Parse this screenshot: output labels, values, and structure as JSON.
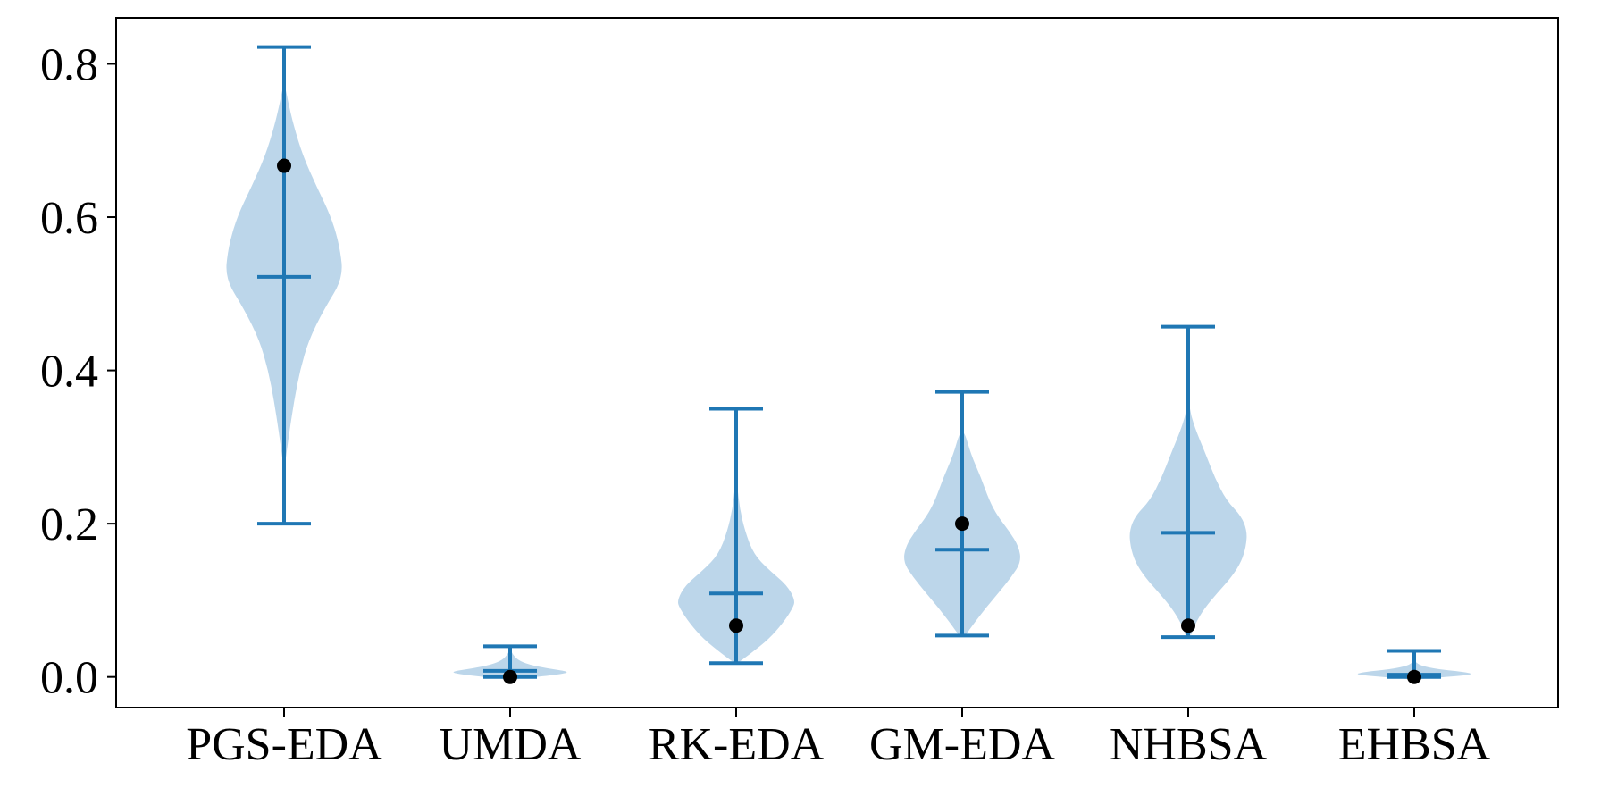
{
  "chart_data": {
    "type": "violin",
    "title": "",
    "xlabel": "",
    "ylabel": "",
    "ylim": [
      -0.04,
      0.86
    ],
    "yticks": [
      0.0,
      0.2,
      0.4,
      0.6,
      0.8
    ],
    "ytick_labels": [
      "0.0",
      "0.2",
      "0.4",
      "0.6",
      "0.8"
    ],
    "grid": false,
    "legend": "none",
    "colors": {
      "violin_fill": "#bcd6ea",
      "whisker": "#1f77b4",
      "point": "#000000",
      "axes": "#000000"
    },
    "categories": [
      "PGS-EDA",
      "UMDA",
      "RK-EDA",
      "GM-EDA",
      "NHBSA",
      "EHBSA"
    ],
    "series": [
      {
        "category": "PGS-EDA",
        "min": 0.2,
        "max": 0.822,
        "mean": 0.522,
        "point": 0.667,
        "density": [
          [
            0.28,
            0.02
          ],
          [
            0.32,
            0.09
          ],
          [
            0.36,
            0.17
          ],
          [
            0.4,
            0.27
          ],
          [
            0.44,
            0.42
          ],
          [
            0.48,
            0.68
          ],
          [
            0.52,
            1.0
          ],
          [
            0.56,
            0.95
          ],
          [
            0.6,
            0.8
          ],
          [
            0.64,
            0.55
          ],
          [
            0.68,
            0.32
          ],
          [
            0.72,
            0.16
          ],
          [
            0.75,
            0.07
          ],
          [
            0.77,
            0.02
          ]
        ]
      },
      {
        "category": "UMDA",
        "min": 0.0,
        "max": 0.04,
        "mean": 0.008,
        "point": 0.0,
        "density": [
          [
            -0.003,
            0.05
          ],
          [
            0.0,
            0.45
          ],
          [
            0.004,
            0.9
          ],
          [
            0.007,
            1.0
          ],
          [
            0.011,
            0.65
          ],
          [
            0.016,
            0.32
          ],
          [
            0.022,
            0.13
          ],
          [
            0.03,
            0.04
          ],
          [
            0.036,
            0.01
          ]
        ]
      },
      {
        "category": "RK-EDA",
        "min": 0.018,
        "max": 0.35,
        "mean": 0.109,
        "point": 0.067,
        "density": [
          [
            0.02,
            0.06
          ],
          [
            0.03,
            0.24
          ],
          [
            0.05,
            0.56
          ],
          [
            0.07,
            0.79
          ],
          [
            0.09,
            0.96
          ],
          [
            0.1,
            1.0
          ],
          [
            0.12,
            0.86
          ],
          [
            0.14,
            0.55
          ],
          [
            0.16,
            0.3
          ],
          [
            0.19,
            0.15
          ],
          [
            0.22,
            0.06
          ],
          [
            0.25,
            0.02
          ]
        ]
      },
      {
        "category": "GM-EDA",
        "min": 0.054,
        "max": 0.372,
        "mean": 0.166,
        "point": 0.2,
        "density": [
          [
            0.055,
            0.06
          ],
          [
            0.07,
            0.2
          ],
          [
            0.09,
            0.4
          ],
          [
            0.11,
            0.62
          ],
          [
            0.13,
            0.83
          ],
          [
            0.15,
            1.0
          ],
          [
            0.17,
            0.96
          ],
          [
            0.19,
            0.8
          ],
          [
            0.21,
            0.6
          ],
          [
            0.23,
            0.46
          ],
          [
            0.26,
            0.32
          ],
          [
            0.29,
            0.15
          ],
          [
            0.32,
            0.04
          ]
        ]
      },
      {
        "category": "NHBSA",
        "min": 0.052,
        "max": 0.457,
        "mean": 0.188,
        "point": 0.067,
        "density": [
          [
            0.055,
            0.05
          ],
          [
            0.07,
            0.12
          ],
          [
            0.09,
            0.28
          ],
          [
            0.11,
            0.5
          ],
          [
            0.13,
            0.73
          ],
          [
            0.15,
            0.9
          ],
          [
            0.17,
            0.98
          ],
          [
            0.19,
            1.0
          ],
          [
            0.21,
            0.9
          ],
          [
            0.23,
            0.65
          ],
          [
            0.26,
            0.45
          ],
          [
            0.29,
            0.3
          ],
          [
            0.32,
            0.14
          ],
          [
            0.34,
            0.05
          ],
          [
            0.36,
            0.01
          ]
        ]
      },
      {
        "category": "EHBSA",
        "min": 0.0,
        "max": 0.034,
        "mean": 0.003,
        "point": 0.0,
        "density": [
          [
            -0.003,
            0.05
          ],
          [
            0.0,
            0.55
          ],
          [
            0.003,
            1.0
          ],
          [
            0.006,
            0.9
          ],
          [
            0.01,
            0.4
          ],
          [
            0.015,
            0.1
          ],
          [
            0.02,
            0.02
          ]
        ]
      }
    ]
  }
}
